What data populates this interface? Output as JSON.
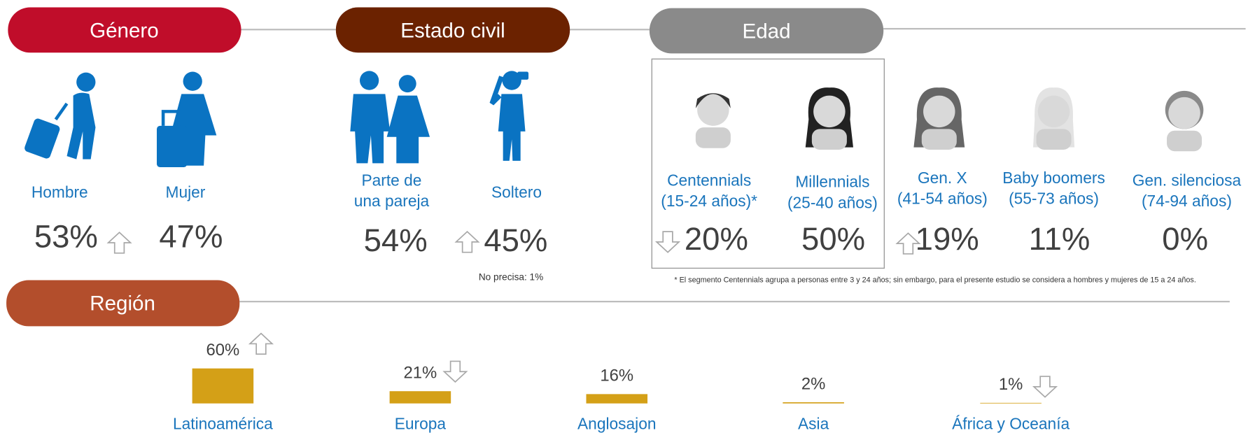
{
  "genero": {
    "title": "Género",
    "items": [
      {
        "label": [
          "Hombre"
        ],
        "value": "53%"
      },
      {
        "label": [
          "Mujer"
        ],
        "value": "47%"
      }
    ]
  },
  "estado_civil": {
    "title": "Estado civil",
    "items": [
      {
        "label": [
          "Parte de",
          "una pareja"
        ],
        "value": "54%"
      },
      {
        "label": [
          "Soltero"
        ],
        "value": "45%"
      }
    ],
    "note": "No precisa: 1%"
  },
  "edad": {
    "title": "Edad",
    "items": [
      {
        "label": [
          "Centennials",
          "(15-24 años)*"
        ],
        "value": "20%"
      },
      {
        "label": [
          "Millennials",
          "(25-40 años)"
        ],
        "value": "50%"
      },
      {
        "label": [
          "Gen. X",
          "(41-54 años)"
        ],
        "value": "19%"
      },
      {
        "label": [
          "Baby boomers",
          "(55-73 años)"
        ],
        "value": "11%"
      },
      {
        "label": [
          "Gen. silenciosa",
          "(74-94 años)"
        ],
        "value": "0%"
      }
    ],
    "footnote": "* El segmento Centennials agrupa a personas entre 3 y 24 años; sin embargo, para el presente estudio se considera a hombres y mujeres de 15 a 24 años."
  },
  "region": {
    "title": "Región",
    "categories": [
      "Latinoamérica",
      "Europa",
      "Anglosajon",
      "Asia",
      "África y Oceanía"
    ],
    "values": [
      60,
      21,
      16,
      2,
      1
    ],
    "value_labels": [
      "60%",
      "21%",
      "16%",
      "2%",
      "1%"
    ],
    "color": "#d4a017"
  }
}
